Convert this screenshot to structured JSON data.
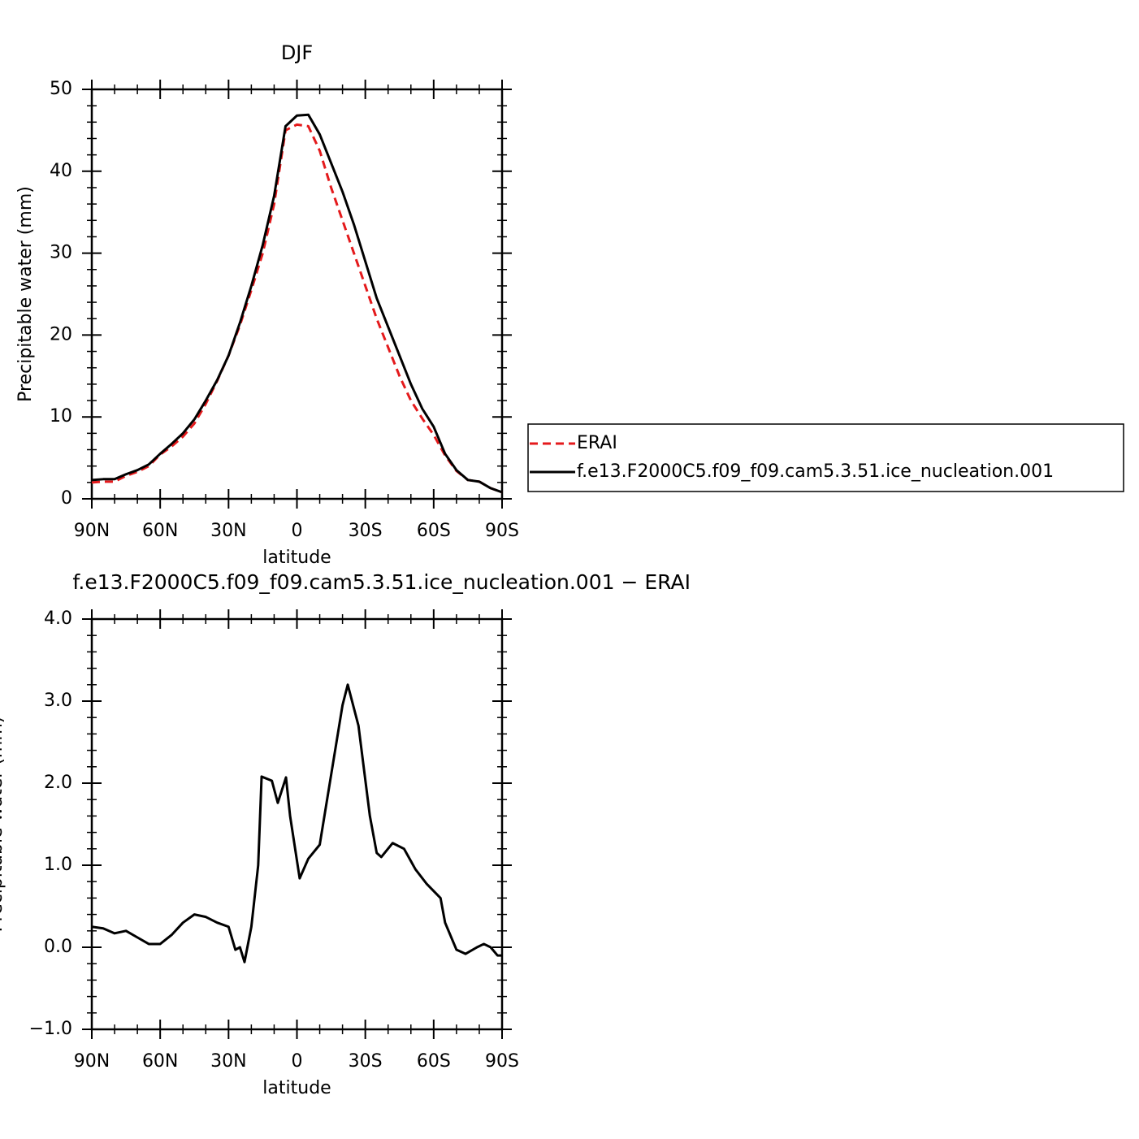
{
  "chart_data": [
    {
      "type": "line",
      "title": "DJF",
      "ylabel": "Precipitable water (mm)",
      "xlabel": "latitude",
      "x": [
        90,
        85,
        80,
        75,
        70,
        65,
        60,
        55,
        50,
        45,
        40,
        35,
        30,
        25,
        20,
        15,
        10,
        5,
        0,
        -5,
        -10,
        -15,
        -20,
        -25,
        -30,
        -35,
        -40,
        -45,
        -50,
        -55,
        -60,
        -65,
        -70,
        -75,
        -80,
        -85,
        -90
      ],
      "series": [
        {
          "name": "ERAI",
          "color": "#e41a1c",
          "style": "dashed",
          "values": [
            2.0,
            2.1,
            2.1,
            2.8,
            3.3,
            4.0,
            5.4,
            6.4,
            7.6,
            9.2,
            11.6,
            14.4,
            17.5,
            21.2,
            25.5,
            30,
            36,
            45,
            45.7,
            45.5,
            42.5,
            38,
            34,
            30,
            26,
            22,
            18.5,
            15,
            12,
            9.8,
            7.8,
            5.3,
            3.4,
            2.3,
            2.1,
            1.3,
            0.8
          ]
        },
        {
          "name": "f.e13.F2000C5.f09_f09.cam5.3.51.ice_nucleation.001",
          "color": "#000000",
          "style": "solid",
          "values": [
            2.3,
            2.4,
            2.4,
            3.0,
            3.5,
            4.2,
            5.5,
            6.7,
            8.0,
            9.7,
            12.0,
            14.5,
            17.5,
            21.5,
            26,
            31,
            37,
            45.5,
            46.8,
            46.9,
            44.5,
            41,
            37.5,
            33.5,
            29,
            24.5,
            21,
            17.5,
            14,
            11,
            8.8,
            5.5,
            3.5,
            2.3,
            2.1,
            1.3,
            0.8
          ]
        }
      ],
      "xlim": [
        90,
        -90
      ],
      "xticks": [
        {
          "value": 90,
          "label": "90N"
        },
        {
          "value": 60,
          "label": "60N"
        },
        {
          "value": 30,
          "label": "30N"
        },
        0,
        {
          "value": -30,
          "label": "30S"
        },
        {
          "value": -60,
          "label": "60S"
        },
        {
          "value": -90,
          "label": "90S"
        }
      ],
      "ylim": [
        0,
        50
      ],
      "yticks": [
        0,
        10,
        20,
        30,
        40,
        50
      ],
      "legend": "right"
    },
    {
      "type": "line",
      "title": "f.e13.F2000C5.f09_f09.cam5.3.51.ice_nucleation.001 − ERAI",
      "ylabel": "Precipitable water (mm)",
      "xlabel": "latitude",
      "x": [
        90,
        85,
        80,
        75,
        70,
        65,
        60,
        55,
        50,
        45,
        40,
        35,
        30,
        27,
        25,
        23,
        20,
        17,
        15.5,
        11,
        8.4,
        4.8,
        3,
        -1.2,
        -5,
        -10,
        -15,
        -20,
        -22.3,
        -27,
        -32,
        -35,
        -37,
        -42,
        -47,
        -52,
        -57,
        -63,
        -65,
        -70,
        -74,
        -79,
        -82,
        -85,
        -88,
        -90
      ],
      "series": [
        {
          "color": "#000000",
          "style": "solid",
          "values": [
            0.25,
            0.23,
            0.17,
            0.2,
            0.12,
            0.04,
            0.04,
            0.15,
            0.3,
            0.4,
            0.37,
            0.3,
            0.25,
            -0.03,
            0.0,
            -0.18,
            0.25,
            1.0,
            2.08,
            2.03,
            1.76,
            2.07,
            1.6,
            0.84,
            1.08,
            1.25,
            2.1,
            2.95,
            3.2,
            2.7,
            1.6,
            1.15,
            1.1,
            1.27,
            1.2,
            0.95,
            0.77,
            0.6,
            0.3,
            -0.03,
            -0.08,
            0.0,
            0.04,
            0.0,
            -0.1,
            -0.1
          ]
        }
      ],
      "xlim": [
        90,
        -90
      ],
      "xticks": [
        {
          "value": 90,
          "label": "90N"
        },
        {
          "value": 60,
          "label": "60N"
        },
        {
          "value": 30,
          "label": "30N"
        },
        0,
        {
          "value": -30,
          "label": "30S"
        },
        {
          "value": -60,
          "label": "60S"
        },
        {
          "value": -90,
          "label": "90S"
        }
      ],
      "ylim": [
        -1,
        4
      ],
      "yticks": [
        {
          "value": -1,
          "label": "−1.0"
        },
        {
          "value": 0,
          "label": "0.0"
        },
        {
          "value": 1,
          "label": "1.0"
        },
        {
          "value": 2,
          "label": "2.0"
        },
        {
          "value": 3,
          "label": "3.0"
        },
        {
          "value": 4,
          "label": "4.0"
        }
      ]
    }
  ]
}
